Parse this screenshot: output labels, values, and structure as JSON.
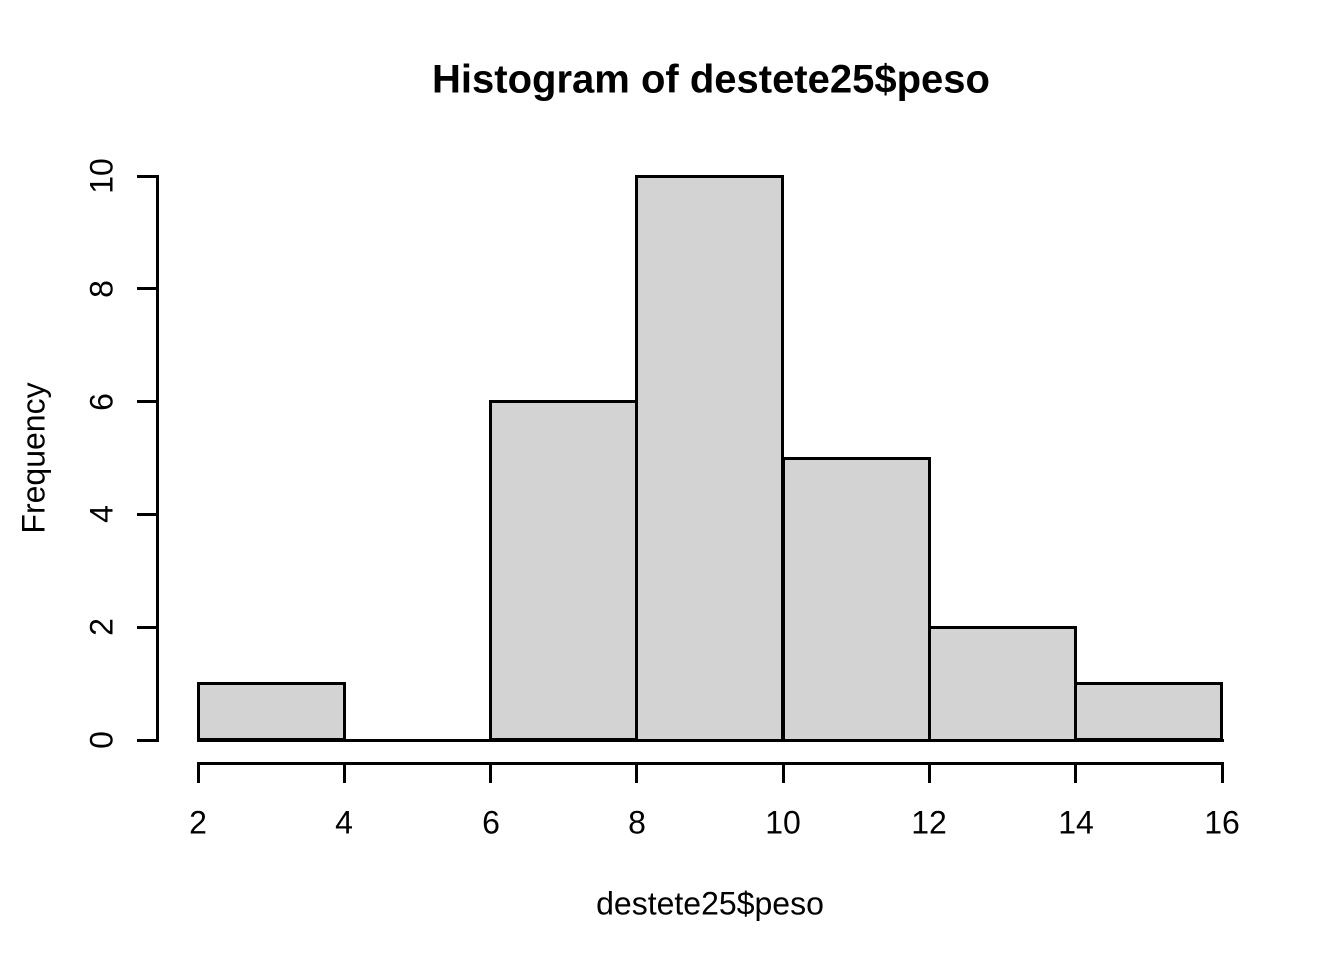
{
  "figure": {
    "title": "Histogram of destete25$peso",
    "x_label": "destete25$peso",
    "y_label": "Frequency"
  },
  "chart_data": {
    "type": "bar",
    "subtype": "histogram",
    "title": "Histogram of destete25$peso",
    "xlabel": "destete25$peso",
    "ylabel": "Frequency",
    "bins": [
      [
        2,
        4
      ],
      [
        4,
        6
      ],
      [
        6,
        8
      ],
      [
        8,
        10
      ],
      [
        10,
        12
      ],
      [
        12,
        14
      ],
      [
        14,
        16
      ]
    ],
    "values": [
      1,
      0,
      6,
      10,
      5,
      2,
      1
    ],
    "x_ticks": [
      2,
      4,
      6,
      8,
      10,
      12,
      14,
      16
    ],
    "y_ticks": [
      0,
      2,
      4,
      6,
      8,
      10
    ],
    "xlim": [
      2,
      16
    ],
    "ylim": [
      0,
      10
    ],
    "grid": false,
    "legend": null,
    "colors": {
      "bar_fill": "#d3d3d3",
      "bar_border": "#000000",
      "axis": "#000000",
      "text": "#000000",
      "background": "#ffffff"
    }
  }
}
